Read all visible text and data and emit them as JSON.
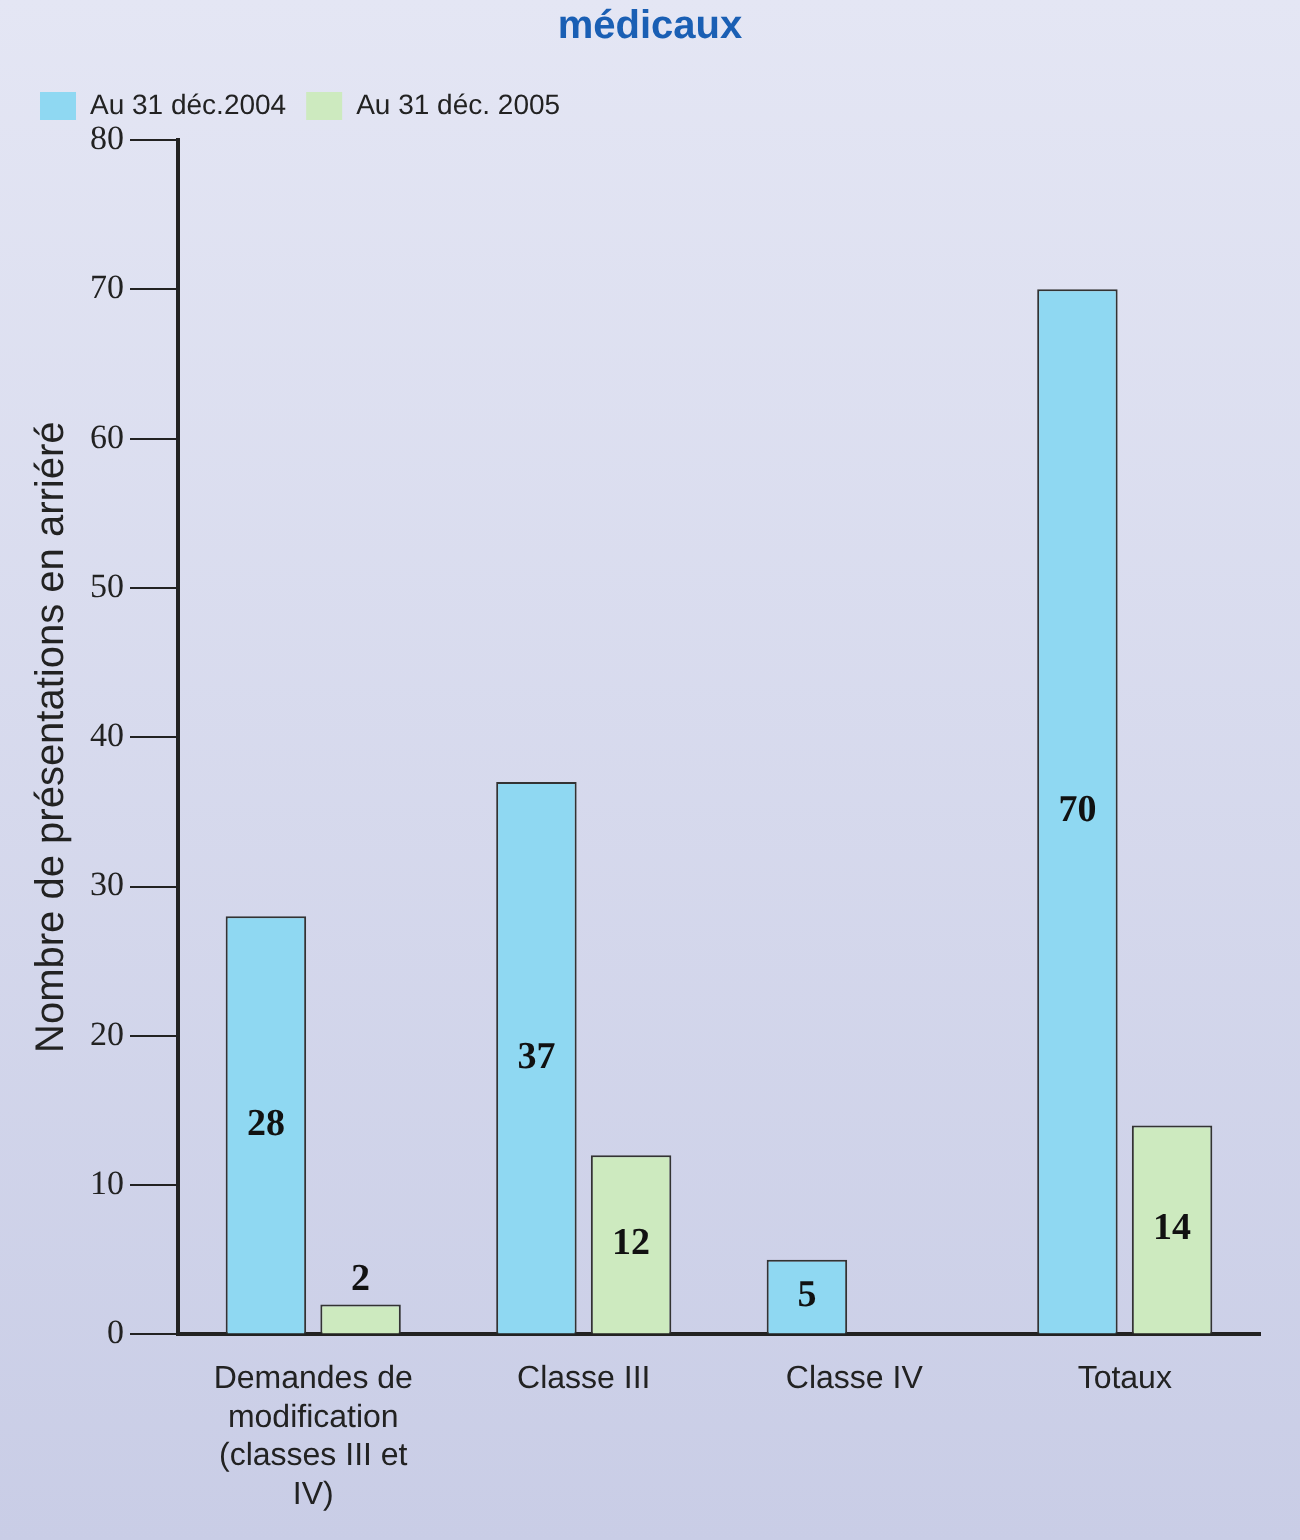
{
  "chart_data": {
    "type": "bar",
    "title": "médicaux",
    "ylabel": "Nombre de présentations en arriéré",
    "categories": [
      "Demandes de modification (classes III et IV)",
      "Classe III",
      "Classe IV",
      "Totaux"
    ],
    "series": [
      {
        "name": "Au 31 déc.2004",
        "color": "#8fd8f2",
        "values": [
          28,
          37,
          5,
          70
        ]
      },
      {
        "name": "Au 31 déc. 2005",
        "color": "#cdeabf",
        "values": [
          2,
          12,
          null,
          14
        ]
      }
    ],
    "ylim": [
      0,
      80
    ],
    "yticks": [
      0,
      10,
      20,
      30,
      40,
      50,
      60,
      70,
      80
    ],
    "grid": false,
    "legend": "top left",
    "data_labels": true
  }
}
